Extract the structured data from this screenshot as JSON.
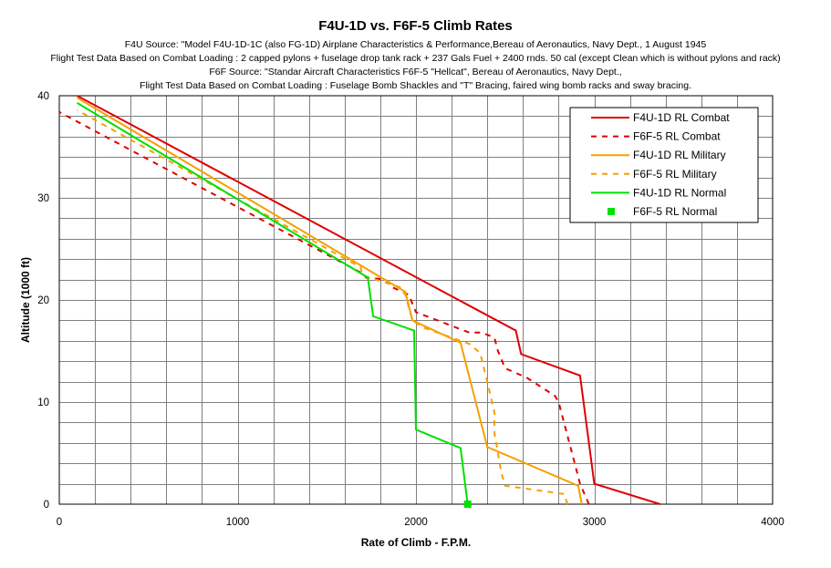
{
  "chart_data": {
    "type": "line",
    "title": "F4U-1D vs. F6F-5 Climb Rates",
    "subtitles": [
      "F4U Source: \"Model F4U-1D-1C (also FG-1D) Airplane Characteristics & Performance,Bereau of Aeronautics, Navy Dept., 1 August 1945",
      "Flight Test Data Based on Combat Loading : 2 capped pylons + fuselage drop tank rack + 237 Gals Fuel + 2400 rnds. 50 cal (except Clean which is without pylons and rack)",
      "F6F Source: \"Standar Aircraft Characteristics F6F-5 \"Hellcat\", Bereau of Aeronautics, Navy Dept.,",
      "Flight Test Data Based on Combat Loading : Fuselage Bomb Shackles and \"T\" Bracing, faired wing bomb racks and sway bracing."
    ],
    "xlabel": "Rate of Climb - F.P.M.",
    "ylabel": "Altitude (1000 ft)",
    "xlim": [
      0,
      4000
    ],
    "ylim": [
      0,
      40
    ],
    "xticks": [
      "0",
      "1000",
      "2000",
      "3000",
      "4000"
    ],
    "yticks": [
      "0",
      "10",
      "20",
      "30",
      "40"
    ],
    "grid": true,
    "legend_position": "top-right",
    "series": [
      {
        "name": "F4U-1D RL Combat",
        "color": "#e00000",
        "style": "solid",
        "points": [
          [
            3370,
            0
          ],
          [
            3000,
            2
          ],
          [
            2920,
            12.6
          ],
          [
            2590,
            14.7
          ],
          [
            2560,
            17
          ],
          [
            100,
            40
          ]
        ]
      },
      {
        "name": "F6F-5 RL Combat",
        "color": "#e00000",
        "style": "dashed",
        "points": [
          [
            2970,
            0
          ],
          [
            2920,
            2
          ],
          [
            2830,
            8
          ],
          [
            2800,
            10
          ],
          [
            2780,
            10.6
          ],
          [
            2620,
            12.4
          ],
          [
            2500,
            13.3
          ],
          [
            2460,
            15
          ],
          [
            2440,
            16.3
          ],
          [
            2370,
            16.8
          ],
          [
            2300,
            16.8
          ],
          [
            2000,
            18.8
          ],
          [
            1960,
            20.5
          ],
          [
            1860,
            21.3
          ],
          [
            1830,
            22
          ],
          [
            1720,
            22.2
          ],
          [
            1700,
            22.6
          ],
          [
            0,
            38.4
          ]
        ]
      },
      {
        "name": "F4U-1D RL Military",
        "color": "#f5a000",
        "style": "solid",
        "points": [
          [
            2930,
            0
          ],
          [
            2910,
            1.8
          ],
          [
            2400,
            5.6
          ],
          [
            2250,
            15.8
          ],
          [
            1980,
            18
          ],
          [
            1940,
            20.8
          ],
          [
            100,
            39.8
          ]
        ]
      },
      {
        "name": "F6F-5 RL Military",
        "color": "#f5a000",
        "style": "dashed",
        "points": [
          [
            2850,
            0
          ],
          [
            2830,
            1
          ],
          [
            2500,
            1.8
          ],
          [
            2480,
            3
          ],
          [
            2440,
            7
          ],
          [
            2440,
            9
          ],
          [
            2400,
            12
          ],
          [
            2360,
            14.8
          ],
          [
            2300,
            15.7
          ],
          [
            2040,
            17.3
          ],
          [
            1980,
            18
          ],
          [
            1940,
            20.5
          ],
          [
            1920,
            21.2
          ],
          [
            1700,
            22.4
          ],
          [
            1690,
            23.2
          ],
          [
            100,
            38.6
          ]
        ]
      },
      {
        "name": "F4U-1D RL Normal",
        "color": "#00e000",
        "style": "solid",
        "points": [
          [
            2290,
            0
          ],
          [
            2250,
            5.5
          ],
          [
            2000,
            7.3
          ],
          [
            1990,
            17
          ],
          [
            1760,
            18.4
          ],
          [
            1730,
            22.2
          ],
          [
            100,
            39.3
          ]
        ]
      },
      {
        "name": "F6F-5 RL Normal",
        "color": "#00e000",
        "style": "marker",
        "points": [
          [
            2290,
            0
          ]
        ]
      }
    ]
  }
}
